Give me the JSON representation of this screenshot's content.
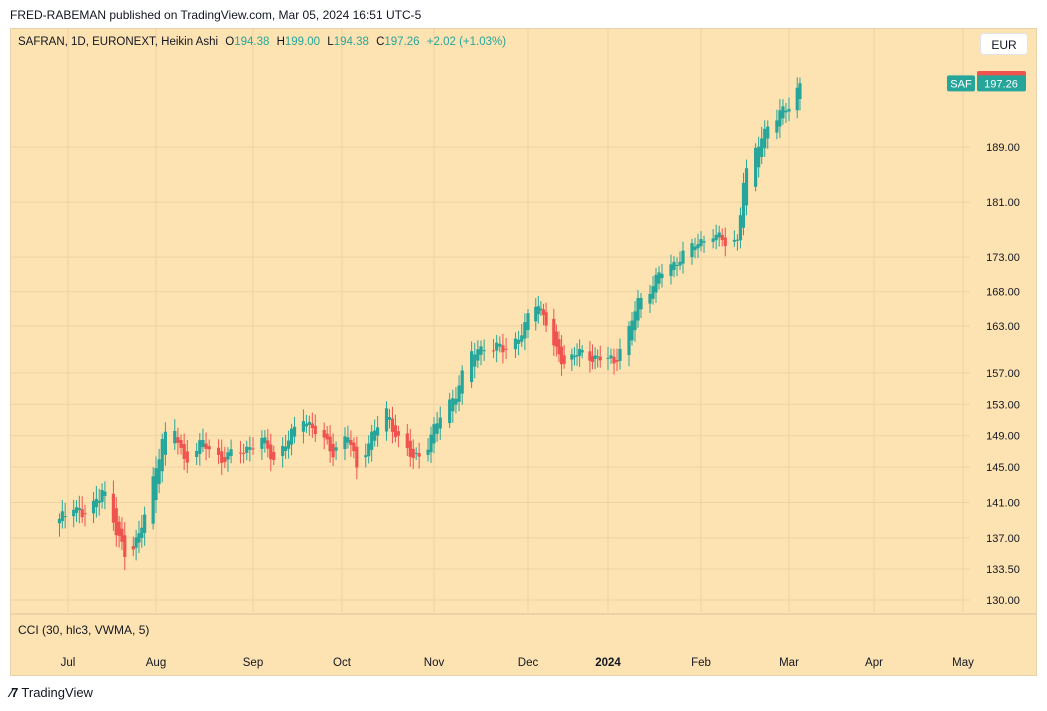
{
  "header": {
    "published": "FRED-RABEMAN published on TradingView.com, Mar 05, 2024 16:51 UTC-5"
  },
  "legend": {
    "symbol": "SAFRAN, 1D, EURONEXT, Heikin Ashi",
    "o_label": "O",
    "o": "194.38",
    "h_label": "H",
    "h": "199.00",
    "l_label": "L",
    "l": "194.38",
    "c_label": "C",
    "c": "197.26",
    "change": "+2.02 (+1.03%)"
  },
  "currency_button": "EUR",
  "indicator_label": "CCI (30, hlc3, VWMA, 5)",
  "footer": {
    "brand": "TradingView"
  },
  "colors": {
    "up": "#26a69a",
    "down": "#ef5350",
    "background": "#fde2b2"
  },
  "chart_data": {
    "type": "candlestick",
    "chart_style": "Heikin Ashi",
    "symbol": "SAF",
    "currency": "EUR",
    "y_axis_ticks": [
      189.0,
      181.0,
      173.0,
      168.0,
      163.0,
      157.0,
      153.0,
      149.0,
      145.0,
      141.0,
      137.0,
      133.5,
      130.0
    ],
    "x_axis_labels": [
      "Jul",
      "Aug",
      "Sep",
      "Oct",
      "Nov",
      "Dec",
      "2024",
      "Feb",
      "Mar",
      "Apr",
      "May"
    ],
    "price_labels": [
      {
        "label": "",
        "value": "197.82",
        "kind": "high"
      },
      {
        "label": "SAF",
        "value": "197.26",
        "kind": "last"
      }
    ],
    "series": [
      {
        "date": "2023-06-28",
        "close": 138.8
      },
      {
        "date": "2023-07-03",
        "close": 141.0
      },
      {
        "date": "2023-07-06",
        "close": 139.5
      },
      {
        "date": "2023-07-10",
        "close": 140.5
      },
      {
        "date": "2023-07-13",
        "close": 142.8
      },
      {
        "date": "2023-07-18",
        "close": 137.5
      },
      {
        "date": "2023-07-21",
        "close": 135.5
      },
      {
        "date": "2023-07-26",
        "close": 137.0
      },
      {
        "date": "2023-07-31",
        "close": 143.5
      },
      {
        "date": "2023-08-03",
        "close": 148.5
      },
      {
        "date": "2023-08-07",
        "close": 149.5
      },
      {
        "date": "2023-08-10",
        "close": 146.0
      },
      {
        "date": "2023-08-16",
        "close": 148.0
      },
      {
        "date": "2023-08-22",
        "close": 146.0
      },
      {
        "date": "2023-08-28",
        "close": 147.0
      },
      {
        "date": "2023-09-04",
        "close": 148.5
      },
      {
        "date": "2023-09-08",
        "close": 146.0
      },
      {
        "date": "2023-09-13",
        "close": 148.5
      },
      {
        "date": "2023-09-18",
        "close": 151.5
      },
      {
        "date": "2023-09-22",
        "close": 149.5
      },
      {
        "date": "2023-09-28",
        "close": 147.0
      },
      {
        "date": "2023-10-03",
        "close": 149.0
      },
      {
        "date": "2023-10-06",
        "close": 145.0
      },
      {
        "date": "2023-10-11",
        "close": 149.0
      },
      {
        "date": "2023-10-16",
        "close": 152.0
      },
      {
        "date": "2023-10-20",
        "close": 148.5
      },
      {
        "date": "2023-10-25",
        "close": 146.0
      },
      {
        "date": "2023-10-30",
        "close": 148.0
      },
      {
        "date": "2023-11-03",
        "close": 151.5
      },
      {
        "date": "2023-11-08",
        "close": 154.5
      },
      {
        "date": "2023-11-13",
        "close": 159.5
      },
      {
        "date": "2023-11-17",
        "close": 160.5
      },
      {
        "date": "2023-11-23",
        "close": 160.0
      },
      {
        "date": "2023-11-28",
        "close": 161.5
      },
      {
        "date": "2023-12-01",
        "close": 164.0
      },
      {
        "date": "2023-12-05",
        "close": 166.5
      },
      {
        "date": "2023-12-08",
        "close": 163.5
      },
      {
        "date": "2023-12-12",
        "close": 159.5
      },
      {
        "date": "2023-12-15",
        "close": 158.5
      },
      {
        "date": "2023-12-20",
        "close": 159.5
      },
      {
        "date": "2023-12-27",
        "close": 159.0
      },
      {
        "date": "2024-01-03",
        "close": 158.5
      },
      {
        "date": "2024-01-08",
        "close": 162.5
      },
      {
        "date": "2024-01-11",
        "close": 166.5
      },
      {
        "date": "2024-01-15",
        "close": 168.5
      },
      {
        "date": "2024-01-18",
        "close": 170.5
      },
      {
        "date": "2024-01-23",
        "close": 172.0
      },
      {
        "date": "2024-01-26",
        "close": 173.5
      },
      {
        "date": "2024-01-31",
        "close": 175.0
      },
      {
        "date": "2024-02-05",
        "close": 176.5
      },
      {
        "date": "2024-02-09",
        "close": 175.0
      },
      {
        "date": "2024-02-13",
        "close": 175.5
      },
      {
        "date": "2024-02-15",
        "close": 184.0
      },
      {
        "date": "2024-02-20",
        "close": 189.5
      },
      {
        "date": "2024-02-23",
        "close": 192.0
      },
      {
        "date": "2024-02-28",
        "close": 193.5
      },
      {
        "date": "2024-03-01",
        "close": 194.5
      },
      {
        "date": "2024-03-05",
        "close": 197.26
      }
    ]
  }
}
